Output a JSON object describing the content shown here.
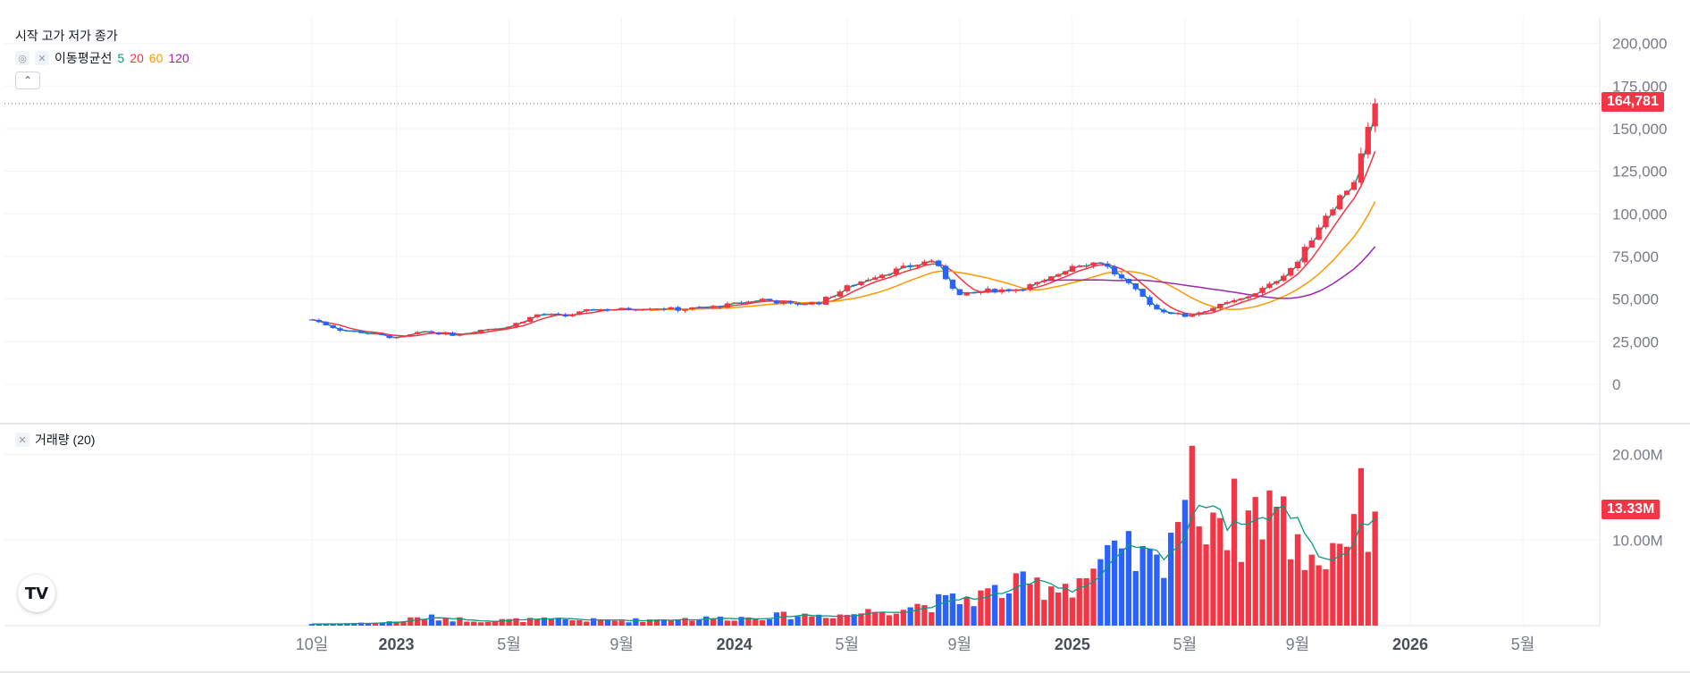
{
  "legend": {
    "ohlc_title": "시작 고가 저가 종가",
    "ma_title": "이동평균선",
    "ma_periods": [
      "5",
      "20",
      "60",
      "120"
    ],
    "ma_colors": [
      "#089981",
      "#f23645",
      "#ff9800",
      "#9c27b0"
    ],
    "volume_title": "거래량 (20)",
    "collapse_icon": "chevron-up-icon",
    "hide_icon": "eye-crossed-icon",
    "remove_icon": "close-icon"
  },
  "price_tag": "164,781",
  "volume_tag": "13.33M",
  "logo_text": "TV",
  "colors": {
    "up": "#f23645",
    "down": "#2962ff",
    "ma_volume": "#089981"
  },
  "chart_data": {
    "type": "candlestick",
    "title": "",
    "price_axis": {
      "ticks": [
        "200,000",
        "175,000",
        "150,000",
        "125,000",
        "100,000",
        "75,000",
        "50,000",
        "25,000",
        "0"
      ],
      "tick_values": [
        200000,
        175000,
        150000,
        125000,
        100000,
        75000,
        50000,
        25000,
        0
      ],
      "range": [
        -22000,
        215000
      ]
    },
    "volume_axis": {
      "ticks": [
        "20.00M",
        "10.00M"
      ],
      "tick_values": [
        20000000,
        10000000
      ],
      "range": [
        0,
        23500000
      ]
    },
    "time_axis": {
      "labels": [
        "10일",
        "2023",
        "5월",
        "9월",
        "2024",
        "5월",
        "9월",
        "2025",
        "5월",
        "9월",
        "2026",
        "5월"
      ],
      "label_dates": [
        "2022-10",
        "2023-01",
        "2023-05",
        "2023-09",
        "2024-01",
        "2024-05",
        "2024-09",
        "2025-01",
        "2025-05",
        "2025-09",
        "2026-01",
        "2026-05"
      ],
      "bold": [
        false,
        true,
        false,
        false,
        true,
        false,
        false,
        true,
        false,
        false,
        true,
        false
      ]
    },
    "last_price": 164781,
    "last_volume": 13330000,
    "price_anchors": [
      [
        "2022-10",
        38000
      ],
      [
        "2022-11",
        32000
      ],
      [
        "2022-12",
        30000
      ],
      [
        "2023-01",
        27000
      ],
      [
        "2023-02",
        31000
      ],
      [
        "2023-03",
        29000
      ],
      [
        "2023-04",
        32000
      ],
      [
        "2023-05",
        34000
      ],
      [
        "2023-06",
        41000
      ],
      [
        "2023-07",
        40000
      ],
      [
        "2023-08",
        44000
      ],
      [
        "2023-09",
        44000
      ],
      [
        "2023-10",
        45000
      ],
      [
        "2023-11",
        44000
      ],
      [
        "2023-12",
        45000
      ],
      [
        "2024-01",
        47000
      ],
      [
        "2024-02",
        50000
      ],
      [
        "2024-03",
        47000
      ],
      [
        "2024-04",
        48000
      ],
      [
        "2024-05",
        57000
      ],
      [
        "2024-06",
        64000
      ],
      [
        "2024-07",
        68000
      ],
      [
        "2024-08",
        73000
      ],
      [
        "2024-09",
        52000
      ],
      [
        "2024-10",
        55000
      ],
      [
        "2024-11",
        56000
      ],
      [
        "2024-12",
        60000
      ],
      [
        "2025-01",
        70000
      ],
      [
        "2025-02",
        72000
      ],
      [
        "2025-03",
        58000
      ],
      [
        "2025-04",
        44000
      ],
      [
        "2025-05",
        40000
      ],
      [
        "2025-06",
        45000
      ],
      [
        "2025-07",
        50000
      ],
      [
        "2025-08",
        58000
      ],
      [
        "2025-09",
        72000
      ],
      [
        "2025-10",
        100000
      ],
      [
        "2025-11",
        120000
      ],
      [
        "2025-11-25",
        164781
      ]
    ],
    "volume_anchors": [
      [
        "2022-10",
        0.2
      ],
      [
        "2022-12",
        0.3
      ],
      [
        "2023-01",
        0.5
      ],
      [
        "2023-02",
        1.0
      ],
      [
        "2023-04",
        0.6
      ],
      [
        "2023-06",
        0.7
      ],
      [
        "2023-09",
        0.6
      ],
      [
        "2023-11",
        0.8
      ],
      [
        "2024-01",
        0.9
      ],
      [
        "2024-03",
        1.2
      ],
      [
        "2024-05",
        1.3
      ],
      [
        "2024-07",
        2.2
      ],
      [
        "2024-09",
        3.0
      ],
      [
        "2024-11",
        4.5
      ],
      [
        "2025-01",
        5.0
      ],
      [
        "2025-02",
        7.0
      ],
      [
        "2025-03",
        8.0
      ],
      [
        "2025-04",
        7.0
      ],
      [
        "2025-05",
        16.0
      ],
      [
        "2025-06",
        14.0
      ],
      [
        "2025-07",
        12.0
      ],
      [
        "2025-08",
        15.0
      ],
      [
        "2025-09",
        9.0
      ],
      [
        "2025-10",
        8.0
      ],
      [
        "2025-11",
        13.3
      ]
    ],
    "ma_series": [
      {
        "period": "5",
        "color": "#089981",
        "start": "2022-10"
      },
      {
        "period": "20",
        "color": "#f23645",
        "start": "2022-10"
      },
      {
        "period": "60",
        "color": "#ff9800",
        "start": "2023-10"
      },
      {
        "period": "120",
        "color": "#9c27b0",
        "start": "2024-12"
      }
    ]
  }
}
